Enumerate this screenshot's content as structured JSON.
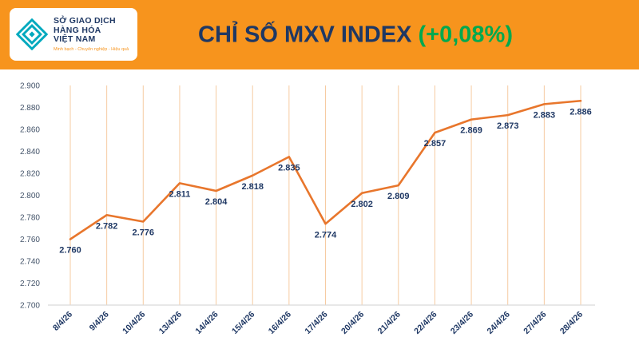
{
  "header": {
    "title_main": "CHỈ SỐ MXV INDEX",
    "title_change": "(+0,08%)",
    "bg_color": "#F7941D",
    "title_color": "#1F3864",
    "change_color": "#00A94F"
  },
  "logo": {
    "line1": "SỞ GIAO DỊCH",
    "line2": "HÀNG HÓA",
    "line3": "VIỆT NAM",
    "tagline": "Minh bạch - Chuyên nghiệp - Hiệu quả"
  },
  "chart_data": {
    "type": "line",
    "title": "CHỈ SỐ MXV INDEX (+0,08%)",
    "categories": [
      "8/4/26",
      "9/4/26",
      "10/4/26",
      "13/4/26",
      "14/4/26",
      "15/4/26",
      "16/4/26",
      "17/4/26",
      "20/4/26",
      "21/4/26",
      "22/4/26",
      "23/4/26",
      "24/4/26",
      "27/4/26",
      "28/4/26"
    ],
    "values": [
      2760,
      2782,
      2776,
      2811,
      2804,
      2818,
      2835,
      2774,
      2802,
      2809,
      2857,
      2869,
      2873,
      2883,
      2886
    ],
    "labels": [
      "2.760",
      "2.782",
      "2.776",
      "2.811",
      "2.804",
      "2.818",
      "2.835",
      "2.774",
      "2.802",
      "2.809",
      "2.857",
      "2.869",
      "2.873",
      "2.883",
      "2.886"
    ],
    "ylim": [
      2700,
      2900
    ],
    "ytick_step": 20,
    "ytick_labels": [
      "2.700",
      "2.720",
      "2.740",
      "2.760",
      "2.780",
      "2.800",
      "2.820",
      "2.840",
      "2.860",
      "2.880",
      "2.900"
    ],
    "xlabel": "",
    "ylabel": "",
    "grid": "vertical-category-lines",
    "legend": "none",
    "line_color": "#E8762C",
    "gridline_color": "#F6CBA2",
    "axis_color": "#D9D9D9",
    "tick_color": "#44546A",
    "label_color": "#1F3864"
  }
}
